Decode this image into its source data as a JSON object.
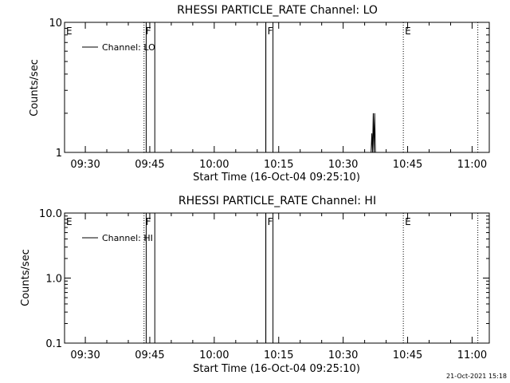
{
  "chart_data": [
    {
      "type": "line",
      "title": "RHESSI PARTICLE_RATE Channel: LO",
      "xlabel": "Start Time (16-Oct-04 09:25:10)",
      "ylabel": "Counts/sec",
      "y_scale": "log",
      "x_range": [
        "09:25:10",
        "11:04:00"
      ],
      "y_range": [
        1,
        10
      ],
      "x_tick_labels": [
        "09:30",
        "09:45",
        "10:00",
        "10:15",
        "10:30",
        "10:45",
        "11:00"
      ],
      "y_tick_labels": [
        "1",
        "10"
      ],
      "legend": {
        "entries": [
          "Channel: LO"
        ],
        "placement": "top-left"
      },
      "series": [
        {
          "name": "Channel: LO",
          "points": [
            [
              "10:36:30",
              1
            ],
            [
              "10:36:40",
              1.4
            ],
            [
              "10:36:50",
              1
            ],
            [
              "10:37:00",
              2.0
            ],
            [
              "10:37:10",
              1
            ],
            [
              "10:37:20",
              2.0
            ],
            [
              "10:37:30",
              1
            ]
          ]
        }
      ],
      "markers": [
        {
          "label": "E",
          "time": "09:25:10",
          "style": "dotted"
        },
        {
          "label": "F",
          "time": "09:43:40",
          "style": "dotted"
        },
        {
          "label": "F",
          "time": "10:12:00",
          "style": "solid"
        },
        {
          "label": "E",
          "time": "10:44:00",
          "style": "dotted"
        },
        {
          "label": "",
          "time": "11:01:20",
          "style": "dotted"
        }
      ],
      "shaded_intervals": [
        [
          "09:44:10",
          "09:46:10"
        ],
        [
          "10:12:00",
          "10:13:40"
        ]
      ]
    },
    {
      "type": "line",
      "title": "RHESSI PARTICLE_RATE Channel: HI",
      "xlabel": "Start Time (16-Oct-04 09:25:10)",
      "ylabel": "Counts/sec",
      "y_scale": "log",
      "x_range": [
        "09:25:10",
        "11:04:00"
      ],
      "y_range": [
        0.1,
        10
      ],
      "x_tick_labels": [
        "09:30",
        "09:45",
        "10:00",
        "10:15",
        "10:30",
        "10:45",
        "11:00"
      ],
      "y_tick_labels": [
        "0.1",
        "1.0",
        "10.0"
      ],
      "legend": {
        "entries": [
          "Channel: HI"
        ],
        "placement": "top-left"
      },
      "series": [
        {
          "name": "Channel: HI",
          "points": []
        }
      ],
      "markers": [
        {
          "label": "E",
          "time": "09:25:10",
          "style": "dotted"
        },
        {
          "label": "F",
          "time": "09:43:40",
          "style": "dotted"
        },
        {
          "label": "F",
          "time": "10:12:00",
          "style": "solid"
        },
        {
          "label": "E",
          "time": "10:44:00",
          "style": "dotted"
        },
        {
          "label": "",
          "time": "11:01:20",
          "style": "dotted"
        }
      ],
      "shaded_intervals": [
        [
          "09:44:10",
          "09:46:10"
        ],
        [
          "10:12:00",
          "10:13:40"
        ]
      ]
    }
  ],
  "footer": {
    "timestamp": "21-Oct-2021 15:18"
  }
}
